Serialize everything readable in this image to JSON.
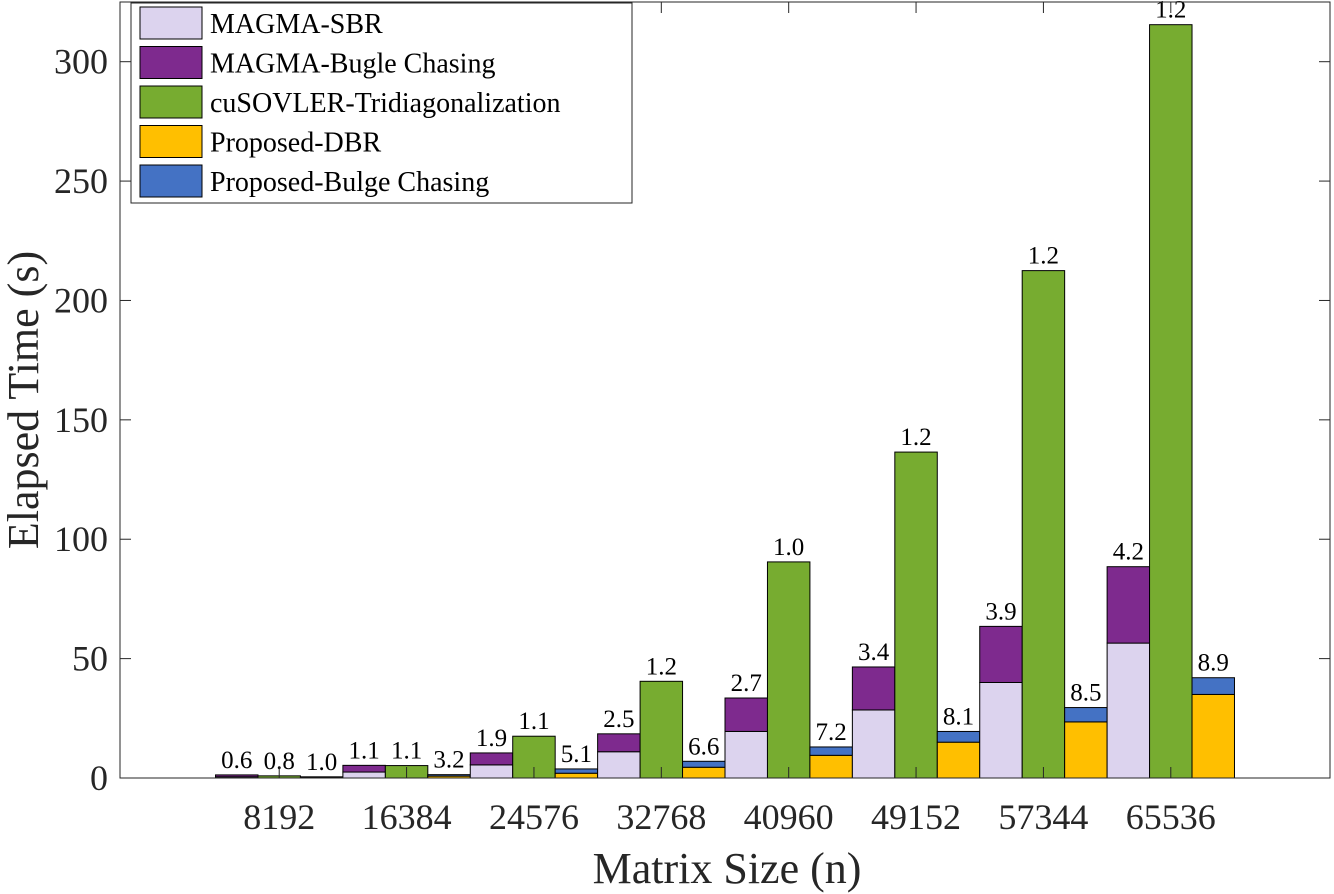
{
  "chart_data": {
    "type": "bar",
    "title": "",
    "xlabel": "Matrix Size (n)",
    "ylabel": "Elapsed Time (s)",
    "ylim": [
      0,
      325
    ],
    "yticks": [
      0,
      50,
      100,
      150,
      200,
      250,
      300
    ],
    "grid": false,
    "legend_position": "top-left",
    "categories": [
      "8192",
      "16384",
      "24576",
      "32768",
      "40960",
      "49152",
      "57344",
      "65536"
    ],
    "series": [
      {
        "name": "MAGMA-SBR",
        "color": "#dcd3ee",
        "stack": "MAGMA",
        "values": [
          0.5,
          2.5,
          5.5,
          11,
          19.5,
          28.5,
          40,
          56.5
        ]
      },
      {
        "name": "MAGMA-Bugle Chasing",
        "color": "#7e2a8e",
        "stack": "MAGMA",
        "values": [
          0.8,
          2.8,
          5,
          7.5,
          14,
          18,
          23.5,
          32
        ]
      },
      {
        "name": "cuSOVLER-Tridiagonalization",
        "color": "#77ac30",
        "stack": "cuSOLVER",
        "values": [
          0.9,
          5.2,
          17.5,
          40.5,
          90.5,
          136.5,
          212.5,
          315.5
        ]
      },
      {
        "name": "Proposed-DBR",
        "color": "#ffbf00",
        "stack": "Proposed",
        "values": [
          0.3,
          0.8,
          2,
          4.5,
          9.5,
          15,
          23.5,
          35
        ]
      },
      {
        "name": "Proposed-Bulge Chasing",
        "color": "#4472c4",
        "stack": "Proposed",
        "values": [
          0.2,
          0.6,
          1.8,
          2.5,
          3.5,
          4.5,
          6,
          7
        ]
      }
    ],
    "annotations": {
      "MAGMA": [
        "0.6",
        "1.1",
        "1.9",
        "2.5",
        "2.7",
        "3.4",
        "3.9",
        "4.2"
      ],
      "cuSOLVER": [
        "0.8",
        "1.1",
        "1.1",
        "1.2",
        "1.0",
        "1.2",
        "1.2",
        "1.2"
      ],
      "Proposed": [
        "1.0",
        "3.2",
        "5.1",
        "6.6",
        "7.2",
        "8.1",
        "8.5",
        "8.9"
      ]
    }
  }
}
